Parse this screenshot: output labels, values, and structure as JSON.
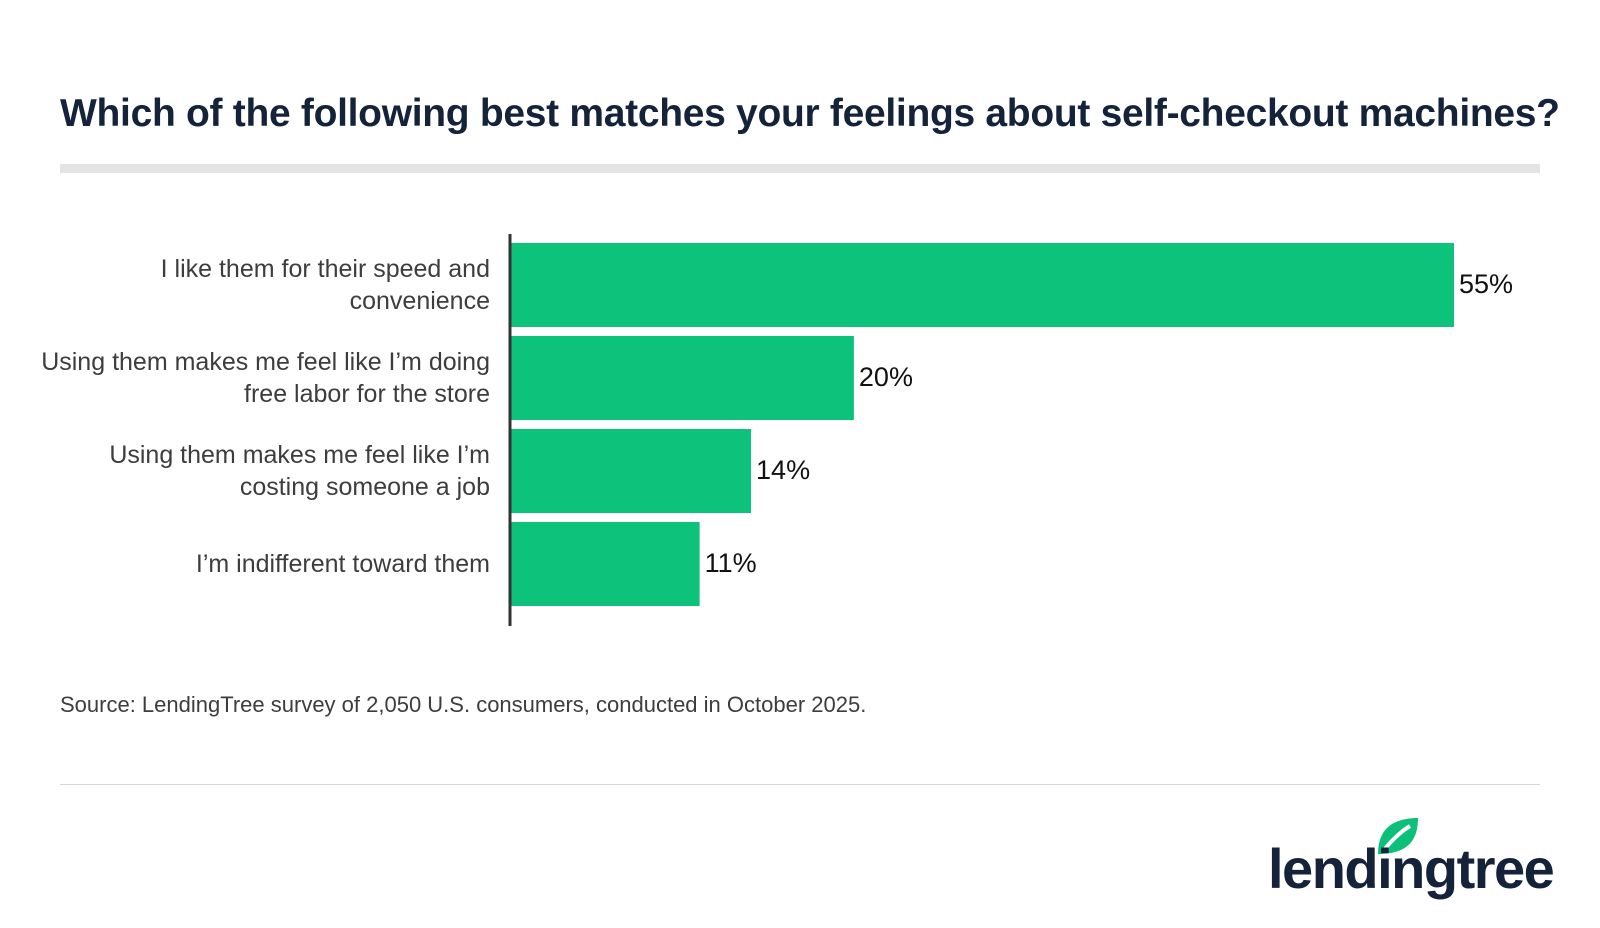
{
  "chart_data": {
    "type": "bar",
    "orientation": "horizontal",
    "title": "Which of the following best matches your feelings about self-checkout machines?",
    "categories": [
      "I like them for their speed and convenience",
      "Using them makes me feel like I’m doing free labor for the store",
      "Using them makes me feel like I’m costing someone a job",
      "I’m indifferent toward them"
    ],
    "values": [
      55,
      20,
      14,
      11
    ],
    "value_labels": [
      "55%",
      "20%",
      "14%",
      "11%"
    ],
    "color": "#0dc27a",
    "source": "Source: LendingTree survey of 2,050 U.S. consumers, conducted in October 2025."
  },
  "logo": "lendingtree"
}
